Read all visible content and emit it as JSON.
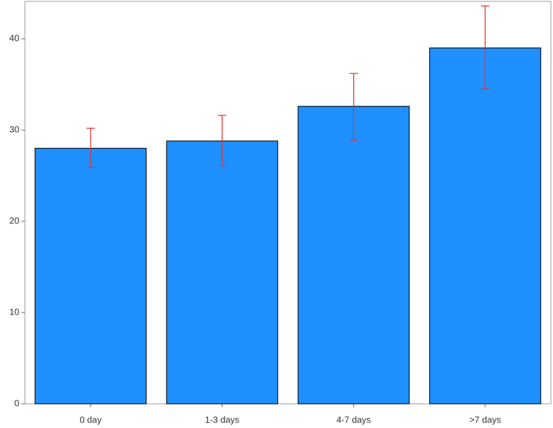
{
  "chart_data": {
    "type": "bar",
    "categories": [
      "0 day",
      "1-3 days",
      "4-7 days",
      ">7 days"
    ],
    "values": [
      28.0,
      28.8,
      32.6,
      39.0
    ],
    "error_lower": [
      25.9,
      26.1,
      28.9,
      34.5
    ],
    "error_upper": [
      30.2,
      31.6,
      36.2,
      43.6
    ],
    "color": "#1e90ff",
    "error_color": "#e8312f",
    "ylim": [
      0,
      44.1
    ],
    "yticks": [
      0,
      10,
      20,
      30,
      40
    ],
    "grid": false
  }
}
